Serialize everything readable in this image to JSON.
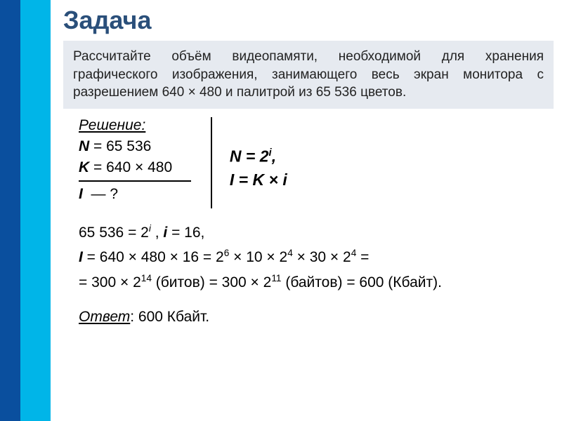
{
  "colors": {
    "sidebar_dark": "#0a4f9e",
    "sidebar_light": "#00b5e8",
    "box_bg": "#e6eaf0",
    "title_color": "#2a4f7a",
    "text": "#222222"
  },
  "title": "Задача",
  "problem": "Рассчитайте объём видеопамяти, необходимой для хранения графического изображения, занимающего весь экран монитора с разрешением 640 × 480 и палитрой из 65 536 цветов.",
  "given": {
    "label": "Решение:",
    "n_var": "N",
    "n_val": "= 65 536",
    "k_var": "K",
    "k_val": "= 640 × 480",
    "i_var": "I",
    "i_val": "— ?"
  },
  "formulas": {
    "line1_pre": "N = 2",
    "line1_sup": "i",
    "line1_post": ",",
    "line2": "I = K × i"
  },
  "calc": {
    "l1_a": "65 536 = 2",
    "l1_sup": "i",
    "l1_b": " ,  ",
    "l1_c": "i",
    "l1_d": " = 16,",
    "l2_a": "I",
    "l2_b": " = 640 × 480 × 16  = 2",
    "l2_s1": "6",
    "l2_c": " × 10 × 2",
    "l2_s2": "4",
    "l2_d": " × 30 × 2",
    "l2_s3": "4",
    "l2_e": " =",
    "l3_a": "= 300 × 2",
    "l3_s1": "14",
    "l3_b": " (битов) = 300 × 2",
    "l3_s2": "11",
    "l3_c": " (байтов) = 600 (Кбайт)."
  },
  "answer": {
    "label": "Ответ",
    "value": ": 600 Кбайт."
  }
}
